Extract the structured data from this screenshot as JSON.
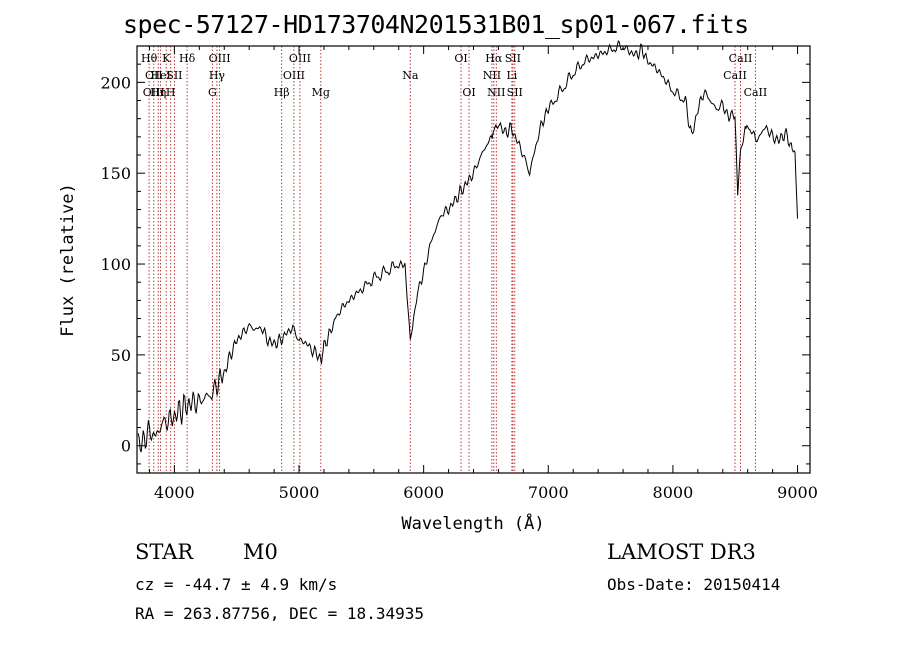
{
  "header": {
    "title": "spec-57127-HD173704N201531B01_sp01-067.fits"
  },
  "chart_data": {
    "type": "line",
    "title": "spec-57127-HD173704N201531B01_sp01-067.fits",
    "xlabel": "Wavelength (Å)",
    "ylabel": "Flux (relative)",
    "xlim": [
      3700,
      9100
    ],
    "ylim": [
      -15,
      220
    ],
    "xticks": [
      4000,
      5000,
      6000,
      7000,
      8000,
      9000
    ],
    "yticks": [
      0,
      50,
      100,
      150,
      200
    ],
    "grid": false,
    "series": [
      {
        "name": "flux",
        "x": [
          3710,
          3750,
          3800,
          3850,
          3900,
          3950,
          4000,
          4050,
          4100,
          4150,
          4200,
          4250,
          4300,
          4350,
          4400,
          4450,
          4500,
          4550,
          4600,
          4650,
          4700,
          4750,
          4800,
          4850,
          4900,
          4950,
          5000,
          5050,
          5100,
          5150,
          5180,
          5200,
          5250,
          5300,
          5400,
          5500,
          5600,
          5700,
          5800,
          5850,
          5893,
          5920,
          5950,
          6000,
          6050,
          6100,
          6150,
          6200,
          6250,
          6300,
          6350,
          6400,
          6450,
          6500,
          6550,
          6563,
          6600,
          6650,
          6700,
          6750,
          6800,
          6850,
          6900,
          6950,
          7000,
          7100,
          7200,
          7300,
          7400,
          7500,
          7600,
          7650,
          7700,
          7750,
          7800,
          7900,
          8000,
          8100,
          8150,
          8200,
          8250,
          8300,
          8350,
          8400,
          8450,
          8498,
          8520,
          8542,
          8580,
          8600,
          8662,
          8700,
          8750,
          8800,
          8850,
          8900,
          8950,
          8980,
          9000
        ],
        "values": [
          0,
          3,
          8,
          5,
          12,
          14,
          16,
          20,
          22,
          24,
          24,
          27,
          28,
          35,
          40,
          50,
          58,
          62,
          66,
          64,
          65,
          58,
          56,
          58,
          62,
          65,
          58,
          57,
          53,
          50,
          45,
          55,
          62,
          72,
          80,
          86,
          92,
          96,
          100,
          99,
          58,
          70,
          85,
          95,
          110,
          120,
          128,
          130,
          135,
          140,
          145,
          150,
          158,
          165,
          170,
          175,
          178,
          172,
          175,
          168,
          160,
          150,
          165,
          178,
          185,
          195,
          205,
          212,
          215,
          218,
          220,
          217,
          215,
          218,
          212,
          205,
          195,
          190,
          170,
          185,
          195,
          190,
          185,
          188,
          180,
          182,
          140,
          160,
          175,
          178,
          168,
          172,
          175,
          170,
          168,
          172,
          165,
          160,
          125
        ]
      }
    ],
    "line_labels": [
      {
        "x": 3797,
        "row": 1,
        "text": "Hθ"
      },
      {
        "x": 3835,
        "row": 2,
        "text": "OII"
      },
      {
        "x": 3835,
        "row": 3,
        "text": "OIII"
      },
      {
        "x": 3870,
        "row": 3,
        "text": "Hη"
      },
      {
        "x": 3889,
        "row": 2,
        "text": "HeI"
      },
      {
        "x": 3934,
        "row": 1,
        "text": "K"
      },
      {
        "x": 3970,
        "row": 3,
        "text": "H"
      },
      {
        "x": 4000,
        "row": 2,
        "text": "SII"
      },
      {
        "x": 4102,
        "row": 1,
        "text": "Hδ"
      },
      {
        "x": 4305,
        "row": 3,
        "text": "G"
      },
      {
        "x": 4341,
        "row": 2,
        "text": "Hγ"
      },
      {
        "x": 4363,
        "row": 1,
        "text": "OIII"
      },
      {
        "x": 4861,
        "row": 3,
        "text": "Hβ"
      },
      {
        "x": 4959,
        "row": 2,
        "text": "OIII"
      },
      {
        "x": 5007,
        "row": 1,
        "text": "OIII"
      },
      {
        "x": 5175,
        "row": 3,
        "text": "Mg"
      },
      {
        "x": 5893,
        "row": 2,
        "text": "Na"
      },
      {
        "x": 6300,
        "row": 1,
        "text": "OI"
      },
      {
        "x": 6364,
        "row": 3,
        "text": "OI"
      },
      {
        "x": 6548,
        "row": 2,
        "text": "NII"
      },
      {
        "x": 6563,
        "row": 1,
        "text": "Hα"
      },
      {
        "x": 6583,
        "row": 3,
        "text": "NII"
      },
      {
        "x": 6708,
        "row": 2,
        "text": "Li"
      },
      {
        "x": 6716,
        "row": 1,
        "text": "SII"
      },
      {
        "x": 6731,
        "row": 3,
        "text": "SII"
      },
      {
        "x": 8498,
        "row": 2,
        "text": "CaII"
      },
      {
        "x": 8542,
        "row": 1,
        "text": "CaII"
      },
      {
        "x": 8662,
        "row": 3,
        "text": "CaII"
      }
    ],
    "line_positions": [
      3797,
      3835,
      3870,
      3889,
      3934,
      3970,
      4000,
      4102,
      4305,
      4341,
      4363,
      4861,
      4959,
      5007,
      5175,
      5893,
      6300,
      6364,
      6548,
      6563,
      6583,
      6708,
      6716,
      6731,
      8498,
      8542,
      8662
    ]
  },
  "info": {
    "class": "STAR",
    "subclass": "M0",
    "survey": "LAMOST DR3",
    "cz": "cz = -44.7 ± 4.9 km/s",
    "obs_date": "Obs-Date: 20150414",
    "coords": "RA = 263.87756, DEC =  18.34935"
  },
  "colors": {
    "line": "#000000",
    "marker": "#b22222",
    "background": "#ffffff"
  }
}
